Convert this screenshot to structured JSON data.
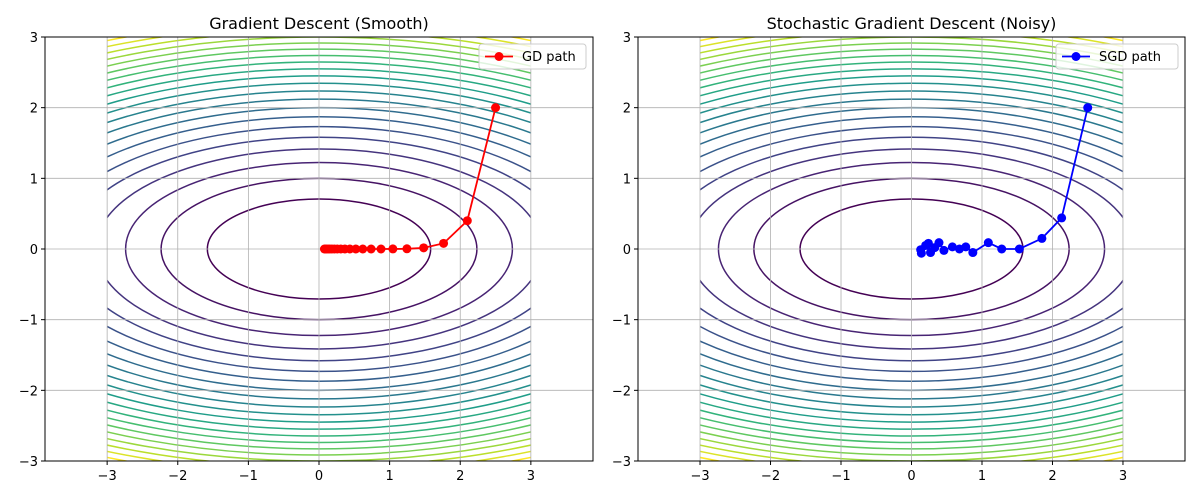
{
  "chart_data": [
    {
      "type": "line",
      "title": "Gradient Descent (Smooth)",
      "xlim": [
        -3.88,
        3.88
      ],
      "ylim": [
        -3,
        3
      ],
      "xticks": [
        "−3",
        "−2",
        "−1",
        "0",
        "1",
        "2",
        "3"
      ],
      "yticks": [
        "−3",
        "−2",
        "−1",
        "0",
        "1",
        "2",
        "3"
      ],
      "grid": true,
      "legend_placement": "top-right",
      "contour": {
        "function": "x^2 + 5y^2",
        "domain": [
          -3,
          3
        ],
        "levels_start": 2.5,
        "levels_step": 2.5,
        "levels_end": 52.5,
        "colormap": "viridis"
      },
      "series": [
        {
          "name": "GD path",
          "color": "#ff0000",
          "marker": "circle",
          "x": [
            2.5,
            2.1,
            1.764,
            1.482,
            1.245,
            1.046,
            0.878,
            0.738,
            0.62,
            0.521,
            0.437,
            0.367,
            0.309,
            0.259,
            0.218,
            0.183,
            0.154,
            0.129,
            0.108,
            0.091,
            0.077
          ],
          "y": [
            2.0,
            0.4,
            0.08,
            0.016,
            0.003,
            0.001,
            0,
            0,
            0,
            0,
            0,
            0,
            0,
            0,
            0,
            0,
            0,
            0,
            0,
            0,
            0
          ]
        }
      ]
    },
    {
      "type": "line",
      "title": "Stochastic Gradient Descent (Noisy)",
      "xlim": [
        -3.88,
        3.88
      ],
      "ylim": [
        -3,
        3
      ],
      "xticks": [
        "−3",
        "−2",
        "−1",
        "0",
        "1",
        "2",
        "3"
      ],
      "yticks": [
        "−3",
        "−2",
        "−1",
        "0",
        "1",
        "2",
        "3"
      ],
      "grid": true,
      "legend_placement": "top-right",
      "contour": {
        "function": "x^2 + 5y^2",
        "domain": [
          -3,
          3
        ],
        "levels_start": 2.5,
        "levels_step": 2.5,
        "levels_end": 52.5,
        "colormap": "viridis"
      },
      "series": [
        {
          "name": "SGD path",
          "color": "#0000ff",
          "marker": "circle",
          "x": [
            2.5,
            2.13,
            1.85,
            1.53,
            1.28,
            1.09,
            0.87,
            0.77,
            0.68,
            0.58,
            0.46,
            0.39,
            0.33,
            0.27,
            0.24,
            0.2,
            0.14,
            0.13
          ],
          "y": [
            2.0,
            0.44,
            0.15,
            0.0,
            0.0,
            0.09,
            -0.05,
            0.03,
            0.0,
            0.03,
            -0.02,
            0.09,
            0.02,
            -0.05,
            0.08,
            0.05,
            -0.06,
            -0.01
          ]
        }
      ]
    }
  ]
}
